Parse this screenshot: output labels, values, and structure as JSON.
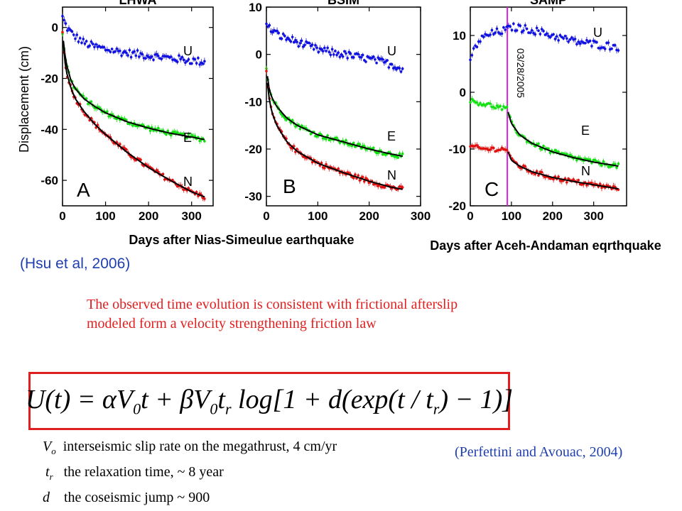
{
  "chart_data": [
    {
      "type": "scatter",
      "title": "LHWA",
      "panel_letter": "A",
      "ylabel": "Displacement (cm)",
      "xlim": [
        0,
        350
      ],
      "ylim": [
        -70,
        8
      ],
      "xticks": [
        "0",
        "100",
        "200",
        "300"
      ],
      "yticks": [
        "0",
        "-20",
        "-40",
        "-60"
      ],
      "series": [
        {
          "name": "U",
          "color": "#1010e0",
          "x": [
            0,
            10,
            25,
            50,
            75,
            100,
            150,
            200,
            250,
            300,
            330
          ],
          "y": [
            4,
            0,
            -3,
            -6,
            -7.5,
            -8.5,
            -10,
            -11,
            -12,
            -13,
            -13.5
          ]
        },
        {
          "name": "E",
          "color": "#10e010",
          "x": [
            0,
            5,
            10,
            20,
            30,
            50,
            75,
            100,
            150,
            200,
            250,
            300,
            330
          ],
          "y": [
            -2,
            -10,
            -15,
            -21,
            -24,
            -28,
            -31,
            -33.5,
            -37,
            -39.5,
            -41.5,
            -43,
            -44
          ]
        },
        {
          "name": "N",
          "color": "#e01010",
          "x": [
            0,
            5,
            10,
            20,
            30,
            50,
            75,
            100,
            150,
            200,
            250,
            300,
            330
          ],
          "y": [
            -2,
            -13,
            -18,
            -24,
            -28,
            -33,
            -38,
            -42,
            -49,
            -55,
            -60,
            -64.5,
            -66.5
          ]
        }
      ],
      "series_labels": [
        "U",
        "E",
        "N"
      ]
    },
    {
      "type": "scatter",
      "title": "BSIM",
      "panel_letter": "B",
      "xlim": [
        0,
        300
      ],
      "ylim": [
        -32,
        10
      ],
      "xticks": [
        "0",
        "100",
        "200",
        "300"
      ],
      "yticks": [
        "10",
        "0",
        "-10",
        "-20",
        "-30"
      ],
      "series": [
        {
          "name": "U",
          "color": "#1010e0",
          "x": [
            0,
            25,
            50,
            100,
            150,
            200,
            240,
            265
          ],
          "y": [
            6,
            4,
            3,
            1,
            0,
            -1,
            -2,
            -3
          ]
        },
        {
          "name": "E",
          "color": "#10e010",
          "x": [
            0,
            5,
            10,
            20,
            40,
            60,
            100,
            150,
            200,
            240,
            265
          ],
          "y": [
            -3,
            -7,
            -9,
            -11,
            -13.5,
            -15,
            -17,
            -18.5,
            -20,
            -21,
            -21.5
          ]
        },
        {
          "name": "N",
          "color": "#e01010",
          "x": [
            0,
            5,
            10,
            20,
            40,
            60,
            100,
            150,
            200,
            240,
            265
          ],
          "y": [
            -4,
            -9,
            -12,
            -15,
            -18.5,
            -20.5,
            -23,
            -25,
            -26.8,
            -28,
            -28.5
          ]
        }
      ],
      "series_labels": [
        "U",
        "E",
        "N"
      ]
    },
    {
      "type": "scatter",
      "title": "SAMP",
      "panel_letter": "C",
      "xlim": [
        0,
        380
      ],
      "ylim": [
        -20,
        15
      ],
      "xticks": [
        "0",
        "100",
        "200",
        "300"
      ],
      "yticks": [
        "10",
        "0",
        "-10",
        "-20"
      ],
      "event_x": 90,
      "event_label": "03/28/2005",
      "series": [
        {
          "name": "U",
          "color": "#1010e0",
          "x": [
            0,
            20,
            40,
            60,
            90,
            100,
            150,
            200,
            250,
            300,
            360
          ],
          "y": [
            6,
            9,
            10,
            10.5,
            11,
            11.5,
            11,
            10,
            9,
            8.5,
            8
          ]
        },
        {
          "name": "E",
          "color": "#10e010",
          "x": [
            0,
            30,
            60,
            89,
            92,
            100,
            120,
            150,
            200,
            250,
            300,
            360
          ],
          "y": [
            -1.5,
            -2,
            -2.5,
            -3,
            -3.5,
            -5.5,
            -7.5,
            -9,
            -10.5,
            -11.5,
            -12.3,
            -13
          ]
        },
        {
          "name": "N",
          "color": "#e01010",
          "x": [
            0,
            30,
            60,
            89,
            92,
            100,
            120,
            150,
            200,
            250,
            300,
            360
          ],
          "y": [
            -9.5,
            -10,
            -10,
            -10,
            -10.5,
            -12,
            -13,
            -14,
            -15,
            -15.7,
            -16.3,
            -17
          ]
        }
      ],
      "series_labels": [
        "U",
        "E",
        "N"
      ]
    }
  ],
  "xlabel_left": "Days after Nias-Simeulue earthquake",
  "xlabel_right": "Days after Aceh-Andaman eqrthquake",
  "citation": "(Hsu et al, 2006)",
  "finding_line1": "The observed time evolution is consistent with frictional afterslip",
  "finding_line2": "modeled form a velocity strengthening friction law",
  "equation": {
    "lhs": "U(t) = ",
    "t1": "αV",
    "t1_sub": "0",
    "t1b": "t + βV",
    "t2_sub": "0",
    "t2": "t",
    "t2_sub_r": "r",
    "t3": " log[1 + d(exp(t / t",
    "t3_sub": "r",
    "t4": ") − 1)]"
  },
  "definitions": [
    {
      "sym": "V",
      "sub": "o",
      "text": "interseismic slip rate on the megathrust, 4 cm/yr"
    },
    {
      "sym": "t",
      "sub": "r",
      "text": "the relaxation time, ~ 8 year"
    },
    {
      "sym": "d",
      "sub": "",
      "text": "the coseismic jump ~ 900"
    }
  ],
  "reference": "(Perfettini and Avouac, 2004)"
}
